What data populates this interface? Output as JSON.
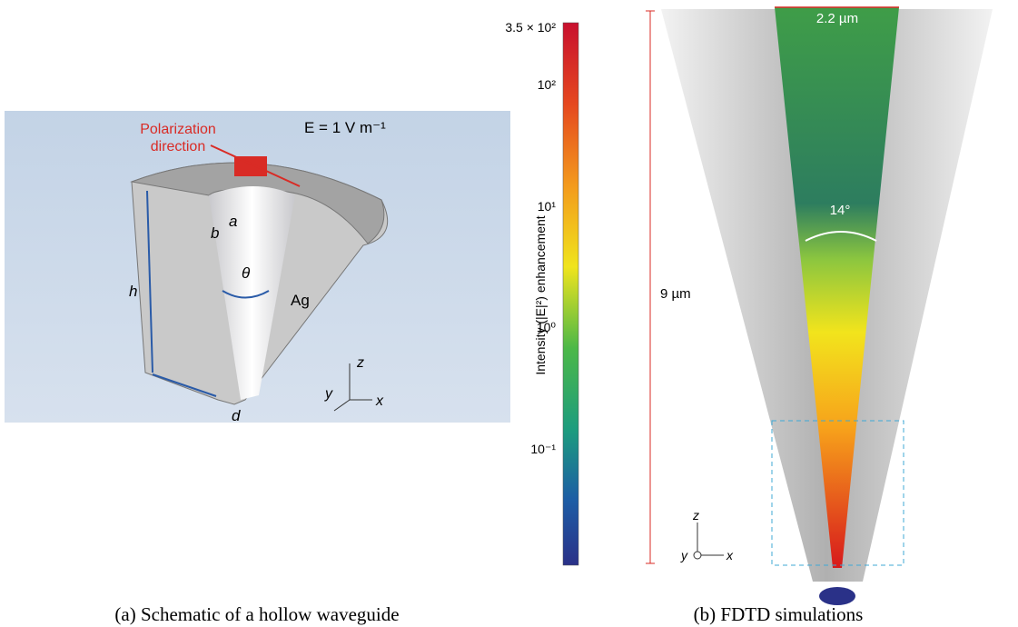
{
  "panel_a": {
    "polarization": [
      "Polarization",
      "direction"
    ],
    "field": "E = 1 V m⁻¹",
    "labels": {
      "a": "a",
      "b": "b",
      "h": "h",
      "theta": "θ",
      "material": "Ag",
      "d": "d",
      "z": "z",
      "y": "y",
      "x": "x"
    },
    "caption": "(a)  Schematic of a hollow waveguide"
  },
  "panel_b": {
    "colorbar_ticks": [
      "3.5 × 10²",
      "10²",
      "10¹",
      "10⁰",
      "10⁻¹"
    ],
    "colorbar_label": "Intensity (|E|²) enhancement",
    "height_label": "9 µm",
    "width_label": "2.2 µm",
    "angle_label": "14°",
    "axes": {
      "z": "z",
      "y": "y",
      "x": "x"
    },
    "caption": "(b)  FDTD simulations"
  }
}
